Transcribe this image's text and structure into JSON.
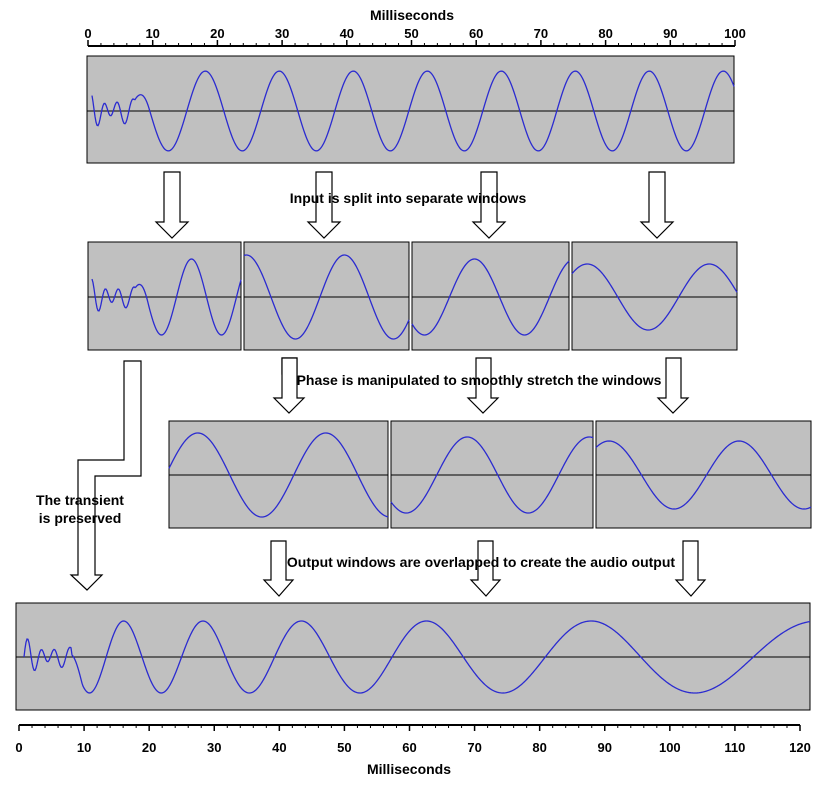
{
  "top_axis": {
    "title": "Milliseconds",
    "ticks": [
      "0",
      "10",
      "20",
      "30",
      "40",
      "50",
      "60",
      "70",
      "80",
      "90",
      "100"
    ]
  },
  "bottom_axis": {
    "title": "Milliseconds",
    "ticks": [
      "0",
      "10",
      "20",
      "30",
      "40",
      "50",
      "60",
      "70",
      "80",
      "90",
      "100",
      "110",
      "120"
    ]
  },
  "captions": {
    "split": "Input is split into separate windows",
    "phase": "Phase is manipulated to smoothly stretch the windows",
    "transient_line1": "The transient",
    "transient_line2": "is preserved",
    "overlap": "Output windows are overlapped to create the audio output"
  },
  "colors": {
    "panel": "#c0c0c0",
    "waveform": "#2b2bd0",
    "baseline": "#000000"
  },
  "icons": [
    "down-arrow-icon",
    "transient-bypass-arrow-icon"
  ]
}
